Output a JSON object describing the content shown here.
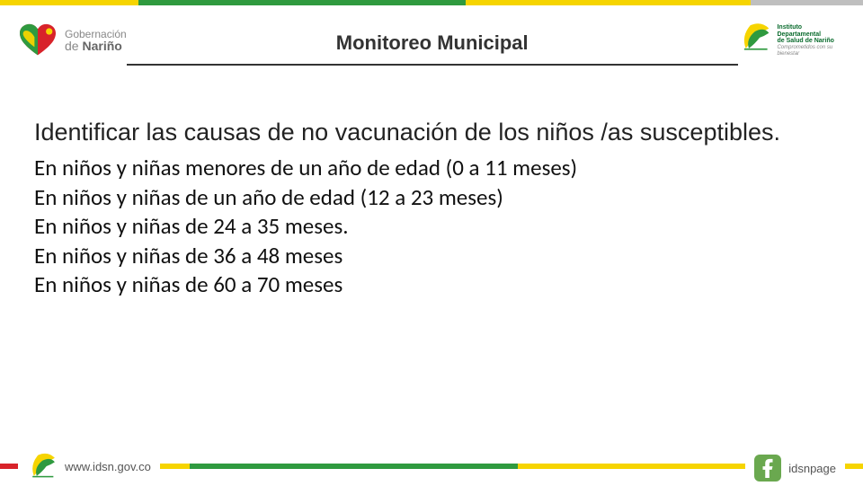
{
  "colors": {
    "yellow": "#f6d400",
    "green": "#2f9a3f",
    "red": "#d8232a",
    "gray": "#bfbfbf",
    "darkgreen": "#0a6b2d",
    "fb_green": "#6aa84f",
    "text_dark": "#333333"
  },
  "top_stripe": [
    {
      "color": "#f6d400",
      "width": "16%"
    },
    {
      "color": "#2f9a3f",
      "width": "38%"
    },
    {
      "color": "#f6d400",
      "width": "33%"
    },
    {
      "color": "#bfbfbf",
      "width": "13%"
    }
  ],
  "footer_stripe": [
    {
      "color": "#d8232a",
      "width": "8%"
    },
    {
      "color": "#f6d400",
      "width": "14%"
    },
    {
      "color": "#2f9a3f",
      "width": "38%"
    },
    {
      "color": "#f6d400",
      "width": "40%"
    }
  ],
  "header": {
    "gov_line1": "Gobernación",
    "gov_line2_prefix": "de",
    "gov_line2_name": "Nariño",
    "title": "Monitoreo Municipal",
    "inst_line1": "Instituto",
    "inst_line2": "Departamental",
    "inst_line3": "de Salud de Nariño",
    "inst_motto": "Comprometidos con su bienestar"
  },
  "content": {
    "subtitle": "Identificar las causas de no vacunación de los niños /as susceptibles.",
    "bullets": [
      "En niños y niñas menores de un año de edad (0 a 11 meses)",
      "En niños y niñas de un año de edad (12 a 23 meses)",
      "En niños y niñas de 24 a 35 meses.",
      "En niños y niñas de 36 a 48 meses",
      "En niños y niñas de 60 a 70 meses"
    ]
  },
  "footer": {
    "url": "www.idsn.gov.co",
    "page": "idsnpage"
  }
}
